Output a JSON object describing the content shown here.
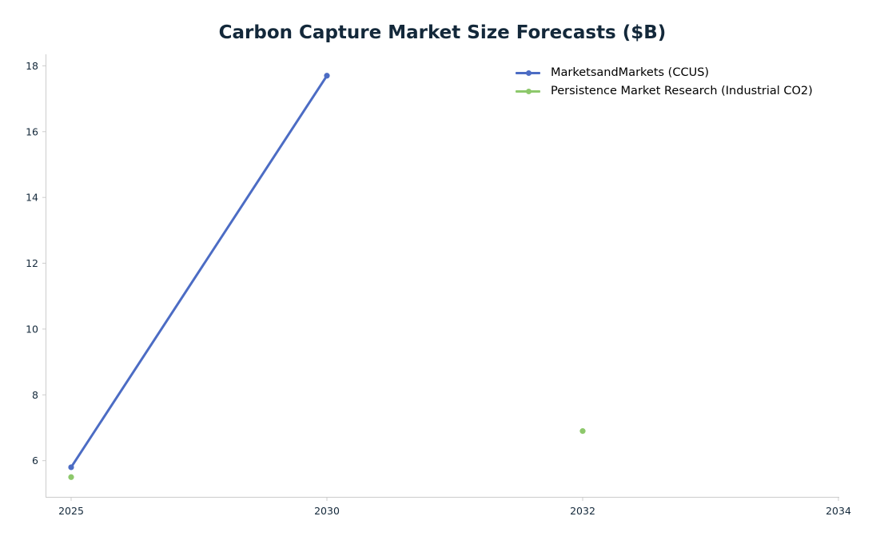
{
  "chart_data": {
    "type": "line",
    "title": "Carbon Capture Market Size Forecasts ($B)",
    "xlabel": "",
    "ylabel": "",
    "x_ticks": [
      2025,
      2030,
      2032,
      2034
    ],
    "x_tick_labels": [
      "2025",
      "2030",
      "2032",
      "2034"
    ],
    "y_ticks": [
      6,
      8,
      10,
      12,
      14,
      16,
      18
    ],
    "y_tick_labels": [
      "6",
      "8",
      "10",
      "12",
      "14",
      "16",
      "18"
    ],
    "ylim": [
      4.9,
      18.35
    ],
    "x_axis": "categorical",
    "grid": false,
    "legend_position": "top-right",
    "series": [
      {
        "name": "MarketsandMarkets (CCUS)",
        "color": "#4c6cc4",
        "points": [
          {
            "x": 2025,
            "y": 5.8
          },
          {
            "x": 2030,
            "y": 17.7
          }
        ]
      },
      {
        "name": "Persistence Market Research (Industrial CO2)",
        "color": "#8dc86b",
        "points": [
          {
            "x": 2025,
            "y": 5.5
          },
          {
            "x": 2032,
            "y": 6.9
          }
        ]
      }
    ]
  }
}
